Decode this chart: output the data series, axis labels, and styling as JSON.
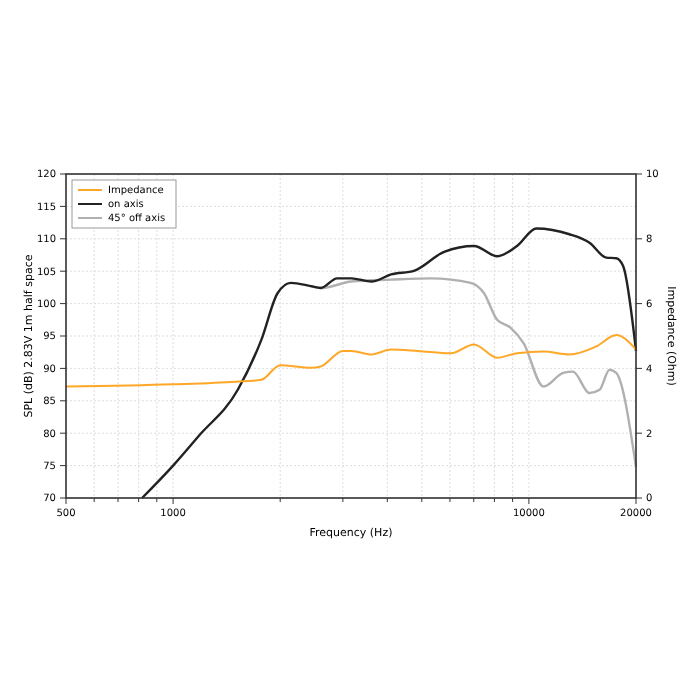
{
  "chart_data": {
    "type": "line",
    "xlabel": "Frequency (Hz)",
    "ylabel": "SPL (dB)  2.83V  1m half space",
    "y2label": "Impedance (Ohm)",
    "log": "x",
    "grid": true,
    "legend": "top left",
    "xlim": [
      500,
      20000
    ],
    "xticks": [
      500,
      {
        "value": 600,
        "label": null
      },
      {
        "value": 700,
        "label": null
      },
      {
        "value": 800,
        "label": null
      },
      {
        "value": 900,
        "label": null
      },
      1000,
      {
        "value": 2000,
        "label": null
      },
      {
        "value": 3000,
        "label": null
      },
      {
        "value": 4000,
        "label": null
      },
      {
        "value": 5000,
        "label": null
      },
      {
        "value": 6000,
        "label": null
      },
      {
        "value": 7000,
        "label": null
      },
      {
        "value": 8000,
        "label": null
      },
      {
        "value": 9000,
        "label": null
      },
      10000,
      20000
    ],
    "ylim": [
      70,
      120
    ],
    "yticks": [
      70,
      75,
      80,
      85,
      90,
      95,
      100,
      105,
      110,
      115,
      120
    ],
    "y2lim": [
      0,
      10
    ],
    "y2ticks": [
      0,
      2,
      4,
      6,
      8,
      10
    ],
    "series": [
      {
        "name": "Impedance",
        "color": "#ffa726",
        "axis": "y2",
        "x": [
          500,
          1000,
          1500,
          1770,
          2000,
          2437,
          2600,
          3000,
          3170,
          3610,
          4100,
          4870,
          6030,
          7010,
          8140,
          9260,
          10990,
          13000,
          15480,
          17600,
          20000
        ],
        "values": [
          3.44,
          3.51,
          3.59,
          3.65,
          4.1,
          4.02,
          4.06,
          4.54,
          4.54,
          4.43,
          4.58,
          4.54,
          4.47,
          4.74,
          4.33,
          4.47,
          4.52,
          4.43,
          4.68,
          5.03,
          4.58
        ]
      },
      {
        "name": "on axis",
        "color": "#222222",
        "x": [
          818,
          1000,
          1177,
          1520,
          1770,
          1966,
          2144,
          2437,
          2600,
          2890,
          3170,
          3610,
          4100,
          4770,
          5780,
          7010,
          8140,
          9260,
          10500,
          13000,
          14800,
          16500,
          17600,
          18400,
          20000
        ],
        "values": [
          70,
          75,
          79.5,
          86.7,
          94.4,
          101.6,
          103.2,
          102.7,
          102.4,
          103.9,
          103.9,
          103.4,
          104.5,
          105.1,
          108,
          108.9,
          107.3,
          108.9,
          111.6,
          110.7,
          109.4,
          107.1,
          107,
          105.8,
          92.7
        ]
      },
      {
        "name": "45° off axis",
        "color": "#b0b0b0",
        "x": [
          2437,
          2600,
          3170,
          4100,
          5310,
          6860,
          7480,
          8140,
          8870,
          9660,
          10990,
          12490,
          13300,
          14800,
          15800,
          16850,
          17600,
          20000
        ],
        "values": [
          102.7,
          102.4,
          103.4,
          103.7,
          103.9,
          103.2,
          101.6,
          97.5,
          96.3,
          93.9,
          87.2,
          89.3,
          89.5,
          86.2,
          86.7,
          89.8,
          89.3,
          74.8
        ]
      }
    ]
  }
}
